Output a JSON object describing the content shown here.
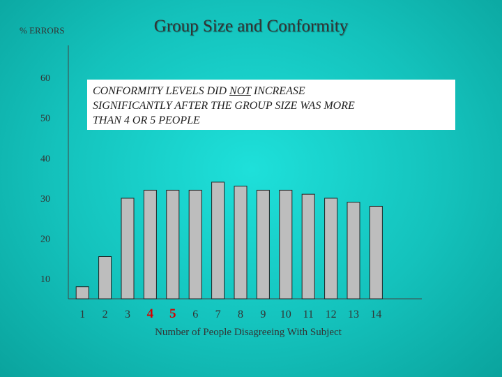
{
  "title": "Group Size and Conformity",
  "callout": {
    "line1_pre": "CONFORMITY   LEVELS   DID",
    "line1_emph": "NOT",
    "line1_post": "INCREASE",
    "line2": "SIGNIFICANTLY   AFTER   THE   GROUP  SIZE  WAS  MORE",
    "line3": "THAN 4 OR 5 PEOPLE"
  },
  "chart_data": {
    "type": "bar",
    "title": "Group Size and Conformity",
    "ylabel": "% ERRORS",
    "xlabel": "Number of  People Disagreeing With Subject",
    "ylim": [
      5,
      68
    ],
    "yticks": [
      10,
      20,
      30,
      40,
      50,
      60
    ],
    "categories": [
      "1",
      "2",
      "3",
      "4",
      "5",
      "6",
      "7",
      "8",
      "9",
      "10",
      "11",
      "12",
      "13",
      "14"
    ],
    "highlighted_categories": [
      "4",
      "5"
    ],
    "values": [
      8,
      15.5,
      30,
      32,
      32,
      32,
      34,
      33,
      32,
      32,
      31,
      30,
      29,
      28
    ],
    "bar_color": "#bdbdbd",
    "highlight_color": "#d40000",
    "grid": false
  }
}
